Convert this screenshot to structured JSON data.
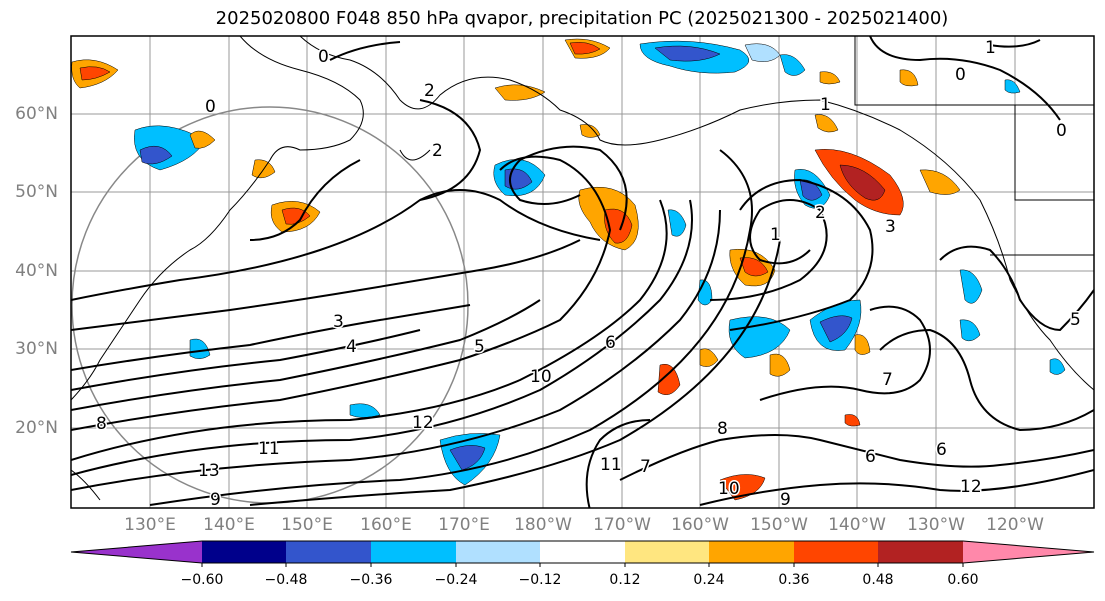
{
  "title": "2025020800 F048 850 hPa qvapor, precipitation PC (2025021300 - 2025021400)",
  "map": {
    "lat_labels": [
      "60°N",
      "50°N",
      "40°N",
      "30°N",
      "20°N"
    ],
    "lon_labels": [
      "130°E",
      "140°E",
      "150°E",
      "160°E",
      "170°E",
      "180°W",
      "170°W",
      "160°W",
      "150°W",
      "140°W",
      "130°W",
      "120°W"
    ],
    "contour_labels": [
      "0",
      "2",
      "2",
      "0",
      "1",
      "0",
      "0",
      "1",
      "1",
      "2",
      "3",
      "3",
      "4",
      "5",
      "6",
      "7",
      "8",
      "8",
      "9",
      "9",
      "10",
      "10",
      "11",
      "11",
      "12",
      "12",
      "13",
      "6",
      "6",
      "7",
      "5"
    ]
  },
  "colorbar": {
    "ticks": [
      "−0.60",
      "−0.48",
      "−0.36",
      "−0.24",
      "−0.12",
      "0.12",
      "0.24",
      "0.36",
      "0.48",
      "0.60"
    ],
    "colors": [
      "#9932cc",
      "#00008b",
      "#3355cc",
      "#00bfff",
      "#b0e0ff",
      "#ffffff",
      "#ffe680",
      "#ffa500",
      "#ff4500",
      "#b22222",
      "#ff88aa"
    ]
  }
}
